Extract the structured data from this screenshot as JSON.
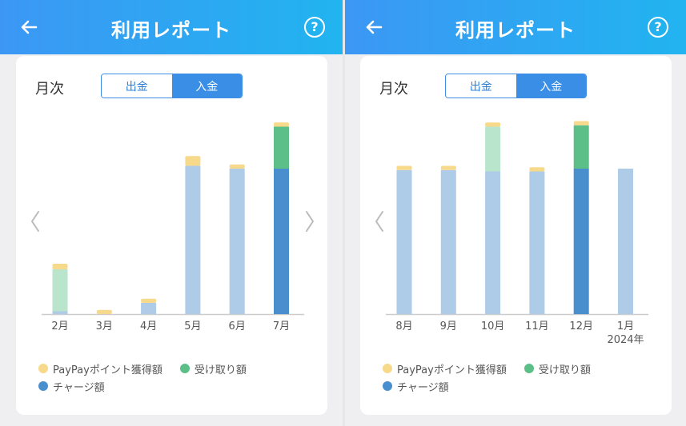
{
  "colors": {
    "points": "#f7d98c",
    "received": "#5dbf88",
    "received_light": "#b9e5cd",
    "charge": "#4a8fcd",
    "charge_light": "#aecbe7",
    "axis": "#cccccc",
    "tick_text": "#555555",
    "arrow": "#bbbbbb"
  },
  "icons": {
    "back": "arrow-left-icon",
    "help": "question-circle-icon",
    "prev": "chevron-left-icon",
    "next": "chevron-right-icon"
  },
  "left": {
    "header": {
      "title": "利用レポート",
      "help": "?"
    },
    "period_label": "月次",
    "segment": {
      "out_label": "出金",
      "in_label": "入金",
      "active": "in"
    },
    "chart_data": {
      "type": "bar",
      "stacked": true,
      "categories": [
        "2月",
        "3月",
        "4月",
        "5月",
        "6月",
        "7月"
      ],
      "category_sublabels": [
        "",
        "",
        "",
        "",
        "",
        ""
      ],
      "highlighted_index": 5,
      "series": [
        {
          "name": "チャージ額",
          "key": "charge",
          "values": [
            1,
            0,
            4,
            53,
            52,
            52
          ]
        },
        {
          "name": "受け取り額",
          "key": "received",
          "values": [
            15,
            0,
            0,
            0,
            0,
            15
          ]
        },
        {
          "name": "PayPayポイント獲得額",
          "key": "points",
          "values": [
            2,
            1.5,
            1.5,
            3.5,
            1.5,
            1.5
          ]
        }
      ],
      "ylim": [
        0,
        70
      ],
      "show_prev_arrow": true,
      "show_next_arrow": true
    },
    "legend": {
      "points": "PayPayポイント獲得額",
      "received": "受け取り額",
      "charge": "チャージ額"
    }
  },
  "right": {
    "header": {
      "title": "利用レポート",
      "help": "?"
    },
    "period_label": "月次",
    "segment": {
      "out_label": "出金",
      "in_label": "入金",
      "active": "in"
    },
    "chart_data": {
      "type": "bar",
      "stacked": true,
      "categories": [
        "8月",
        "9月",
        "10月",
        "11月",
        "12月",
        "1月"
      ],
      "category_sublabels": [
        "",
        "",
        "",
        "",
        "",
        "2024年"
      ],
      "highlighted_index": 4,
      "series": [
        {
          "name": "チャージ額",
          "key": "charge",
          "values": [
            51.5,
            51.5,
            51,
            51,
            52,
            52
          ]
        },
        {
          "name": "受け取り額",
          "key": "received",
          "values": [
            0,
            0,
            16,
            0,
            15.5,
            0
          ]
        },
        {
          "name": "PayPayポイント獲得額",
          "key": "points",
          "values": [
            1.5,
            1.5,
            1.5,
            1.5,
            1.5,
            0
          ]
        }
      ],
      "ylim": [
        0,
        70
      ],
      "show_prev_arrow": true,
      "show_next_arrow": false
    },
    "legend": {
      "points": "PayPayポイント獲得額",
      "received": "受け取り額",
      "charge": "チャージ額"
    }
  }
}
